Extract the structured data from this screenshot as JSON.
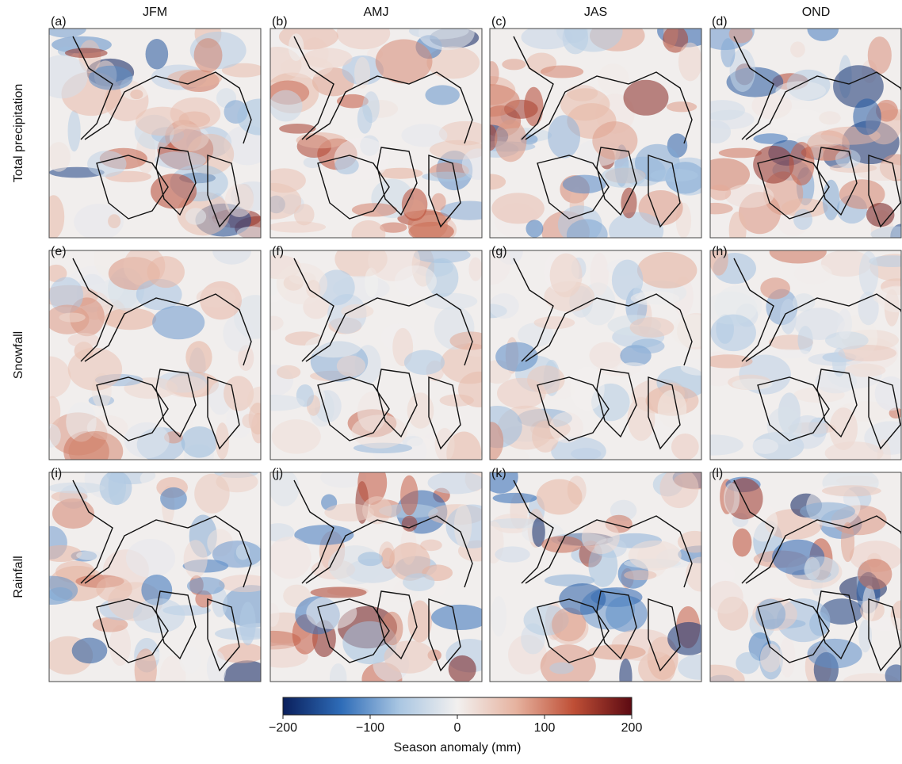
{
  "columns": [
    "JFM",
    "AMJ",
    "JAS",
    "OND"
  ],
  "rows": [
    "Total precipitation",
    "Snowfall",
    "Rainfall"
  ],
  "panels": [
    "(a)",
    "(b)",
    "(c)",
    "(d)",
    "(e)",
    "(f)",
    "(g)",
    "(h)",
    "(i)",
    "(j)",
    "(k)",
    "(l)"
  ],
  "colorbar": {
    "lim": [
      -200,
      200
    ],
    "ticks": [
      {
        "value": -200,
        "label": "−200"
      },
      {
        "value": -100,
        "label": "−100"
      },
      0,
      100,
      200
    ],
    "label": "Season anomaly (mm)",
    "colors": [
      "#0a1f5c",
      "#2e6cb8",
      "#a9c6e2",
      "#f2f0ef",
      "#e6b3a0",
      "#bf4f36",
      "#5c0a12"
    ]
  }
}
